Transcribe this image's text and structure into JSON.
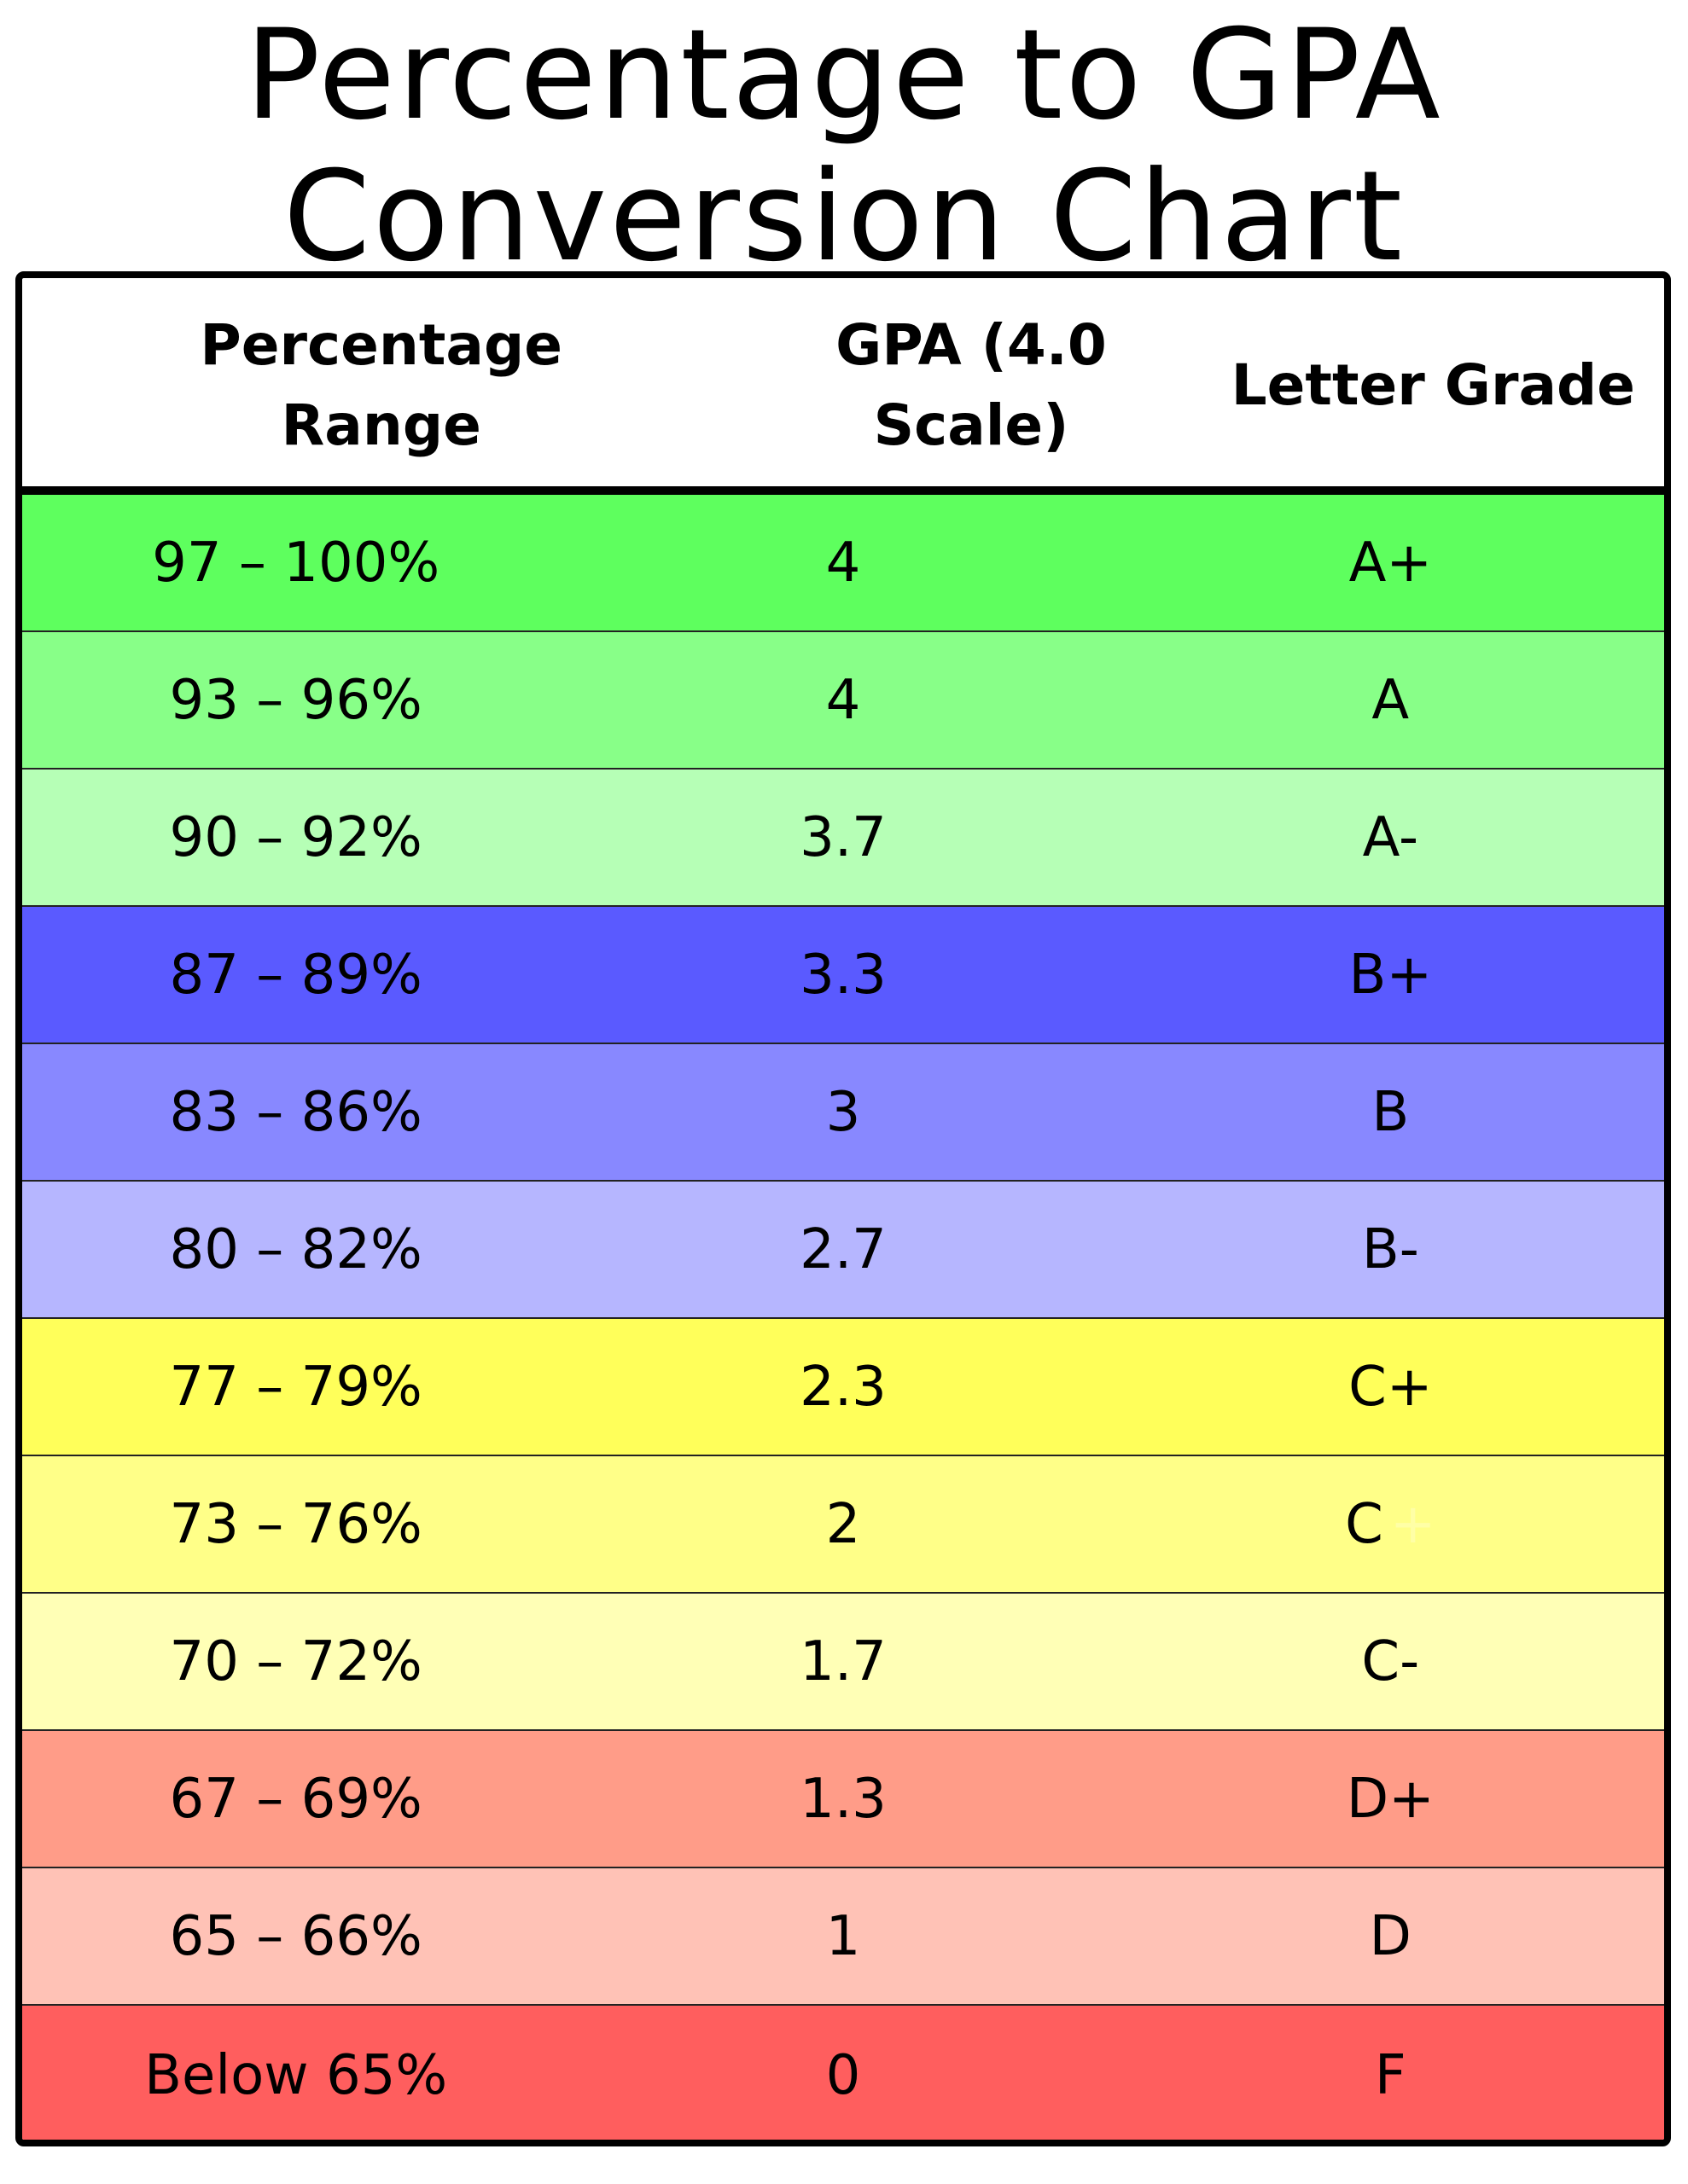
{
  "title": {
    "line1": "Percentage to GPA",
    "line2": "Conversion Chart"
  },
  "headers": {
    "range": "Percentage Range",
    "gpa": "GPA (4.0 Scale)",
    "letter": "Letter Grade"
  },
  "rows": [
    {
      "range": "97 – 100%",
      "gpa": "4",
      "letter": "A+",
      "color": "#5EFF5E"
    },
    {
      "range": "93 – 96%",
      "gpa": "4",
      "letter": "A",
      "color": "#88FF88"
    },
    {
      "range": "90 – 92%",
      "gpa": "3.7",
      "letter": "A-",
      "color": "#B6FFB6"
    },
    {
      "range": "87 – 89%",
      "gpa": "3.3",
      "letter": "B+",
      "color": "#5A5AFF"
    },
    {
      "range": "83 – 86%",
      "gpa": "3",
      "letter": "B",
      "color": "#8888FF"
    },
    {
      "range": "80 – 82%",
      "gpa": "2.7",
      "letter": "B-",
      "color": "#B6B6FF"
    },
    {
      "range": "77 – 79%",
      "gpa": "2.3",
      "letter": "C+",
      "color": "#FFFF5A"
    },
    {
      "range": "73 – 76%",
      "gpa": "2",
      "letter": "C",
      "ghost": "+",
      "color": "#FFFF88"
    },
    {
      "range": "70 – 72%",
      "gpa": "1.7",
      "letter": "C-",
      "color": "#FFFFB6"
    },
    {
      "range": "67 – 69%",
      "gpa": "1.3",
      "letter": "D+",
      "color": "#FF9C88"
    },
    {
      "range": "65 – 66%",
      "gpa": "1",
      "letter": "D",
      "color": "#FFC2B6"
    },
    {
      "range": "Below 65%",
      "gpa": "0",
      "letter": "F",
      "color": "#FF5E5E"
    }
  ]
}
